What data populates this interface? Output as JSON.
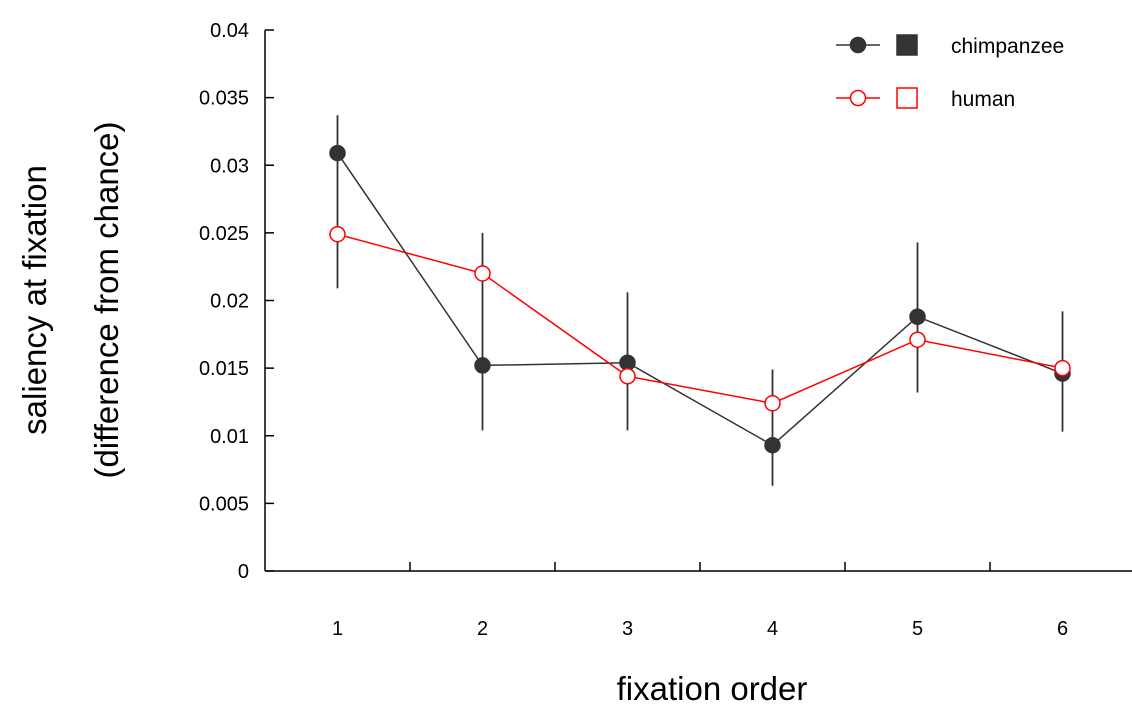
{
  "chart_data": {
    "type": "line",
    "xlabel": "fixation order",
    "ylabel_line1": "saliency at fixation",
    "ylabel_line2": "(difference from chance)",
    "categories": [
      "1",
      "2",
      "3",
      "4",
      "5",
      "6"
    ],
    "ylim": [
      0,
      0.04
    ],
    "yticks": [
      "0",
      "0.005",
      "0.01",
      "0.015",
      "0.02",
      "0.025",
      "0.03",
      "0.035",
      "0.04"
    ],
    "grid": false,
    "legend_position": "top-right",
    "series": [
      {
        "name": "chimpanzee",
        "color": "#333333",
        "marker": "filled-circle",
        "values": [
          0.0309,
          0.0152,
          0.0154,
          0.0093,
          0.0188,
          0.0146
        ],
        "err_low": [
          0.0249,
          0.0104,
          0.0104,
          0.0063,
          0.0132,
          0.0103
        ],
        "err_high": [
          0.0337,
          0.025,
          0.0206,
          0.0149,
          0.0243,
          0.0192
        ]
      },
      {
        "name": "human",
        "color": "#ff0000",
        "marker": "open-circle",
        "values": [
          0.0249,
          0.022,
          0.0144,
          0.0124,
          0.0171,
          0.015
        ],
        "err_low": [
          0.0209,
          null,
          null,
          null,
          null,
          null
        ],
        "err_high": [
          null,
          null,
          null,
          null,
          null,
          null
        ]
      }
    ]
  }
}
